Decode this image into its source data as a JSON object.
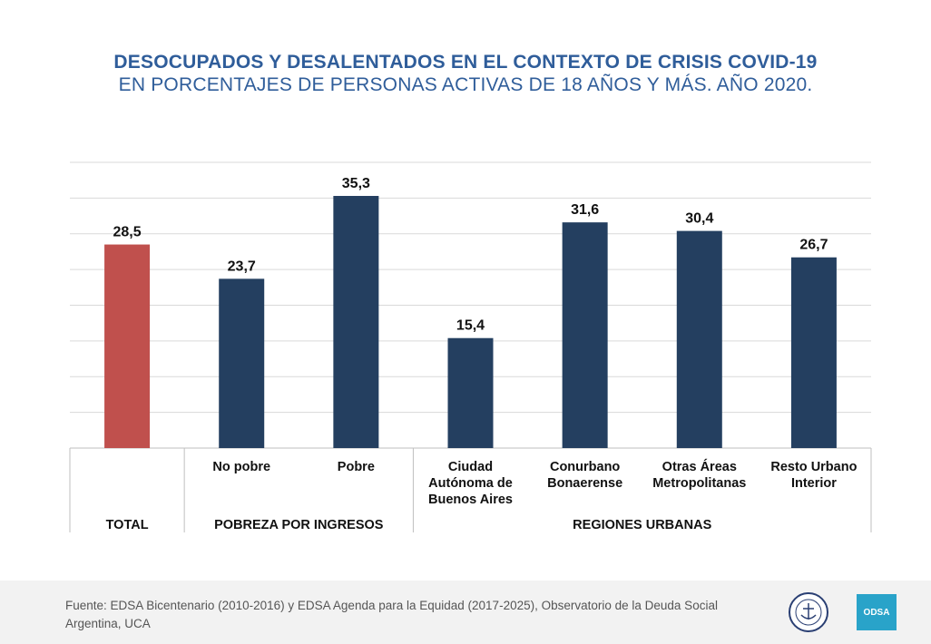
{
  "header": {
    "title": "DESOCUPADOS Y DESALENTADOS EN EL CONTEXTO DE CRISIS COVID-19",
    "subtitle": "EN PORCENTAJES DE PERSONAS ACTIVAS DE 18 AÑOS Y MÁS. AÑO 2020."
  },
  "chart_data": {
    "type": "bar",
    "categories": [
      "",
      "No pobre",
      "Pobre",
      "Ciudad Autónoma de Buenos Aires",
      "Conurbano Bonaerense",
      "Otras Áreas Metropolitanas",
      "Resto Urbano Interior"
    ],
    "category_lines": [
      [],
      [
        "No pobre"
      ],
      [
        "Pobre"
      ],
      [
        "Ciudad",
        "Autónoma de",
        "Buenos Aires"
      ],
      [
        "Conurbano",
        "Bonaerense"
      ],
      [
        "Otras Áreas",
        "Metropolitanas"
      ],
      [
        "Resto Urbano",
        "Interior"
      ]
    ],
    "values": [
      28.5,
      23.7,
      35.3,
      15.4,
      31.6,
      30.4,
      26.7
    ],
    "value_labels": [
      "28,5",
      "23,7",
      "35,3",
      "15,4",
      "31,6",
      "30,4",
      "26,7"
    ],
    "groups": [
      {
        "label": "TOTAL",
        "start": 0,
        "end": 0
      },
      {
        "label": "POBREZA POR INGRESOS",
        "start": 1,
        "end": 2
      },
      {
        "label": "REGIONES URBANAS",
        "start": 3,
        "end": 6
      }
    ],
    "ylim": [
      0,
      40
    ],
    "gridlines": 8,
    "grid": true,
    "colors": {
      "highlight": "#c0504d",
      "bar": "#243f60",
      "grid": "#d9d9d9",
      "axis": "#bfbfbf"
    }
  },
  "footer": {
    "source": "Fuente: EDSA Bicentenario (2010-2016) y EDSA Agenda para la Equidad (2017-2025), Observatorio de la Deuda Social Argentina, UCA",
    "logo_right": "ODSA"
  }
}
